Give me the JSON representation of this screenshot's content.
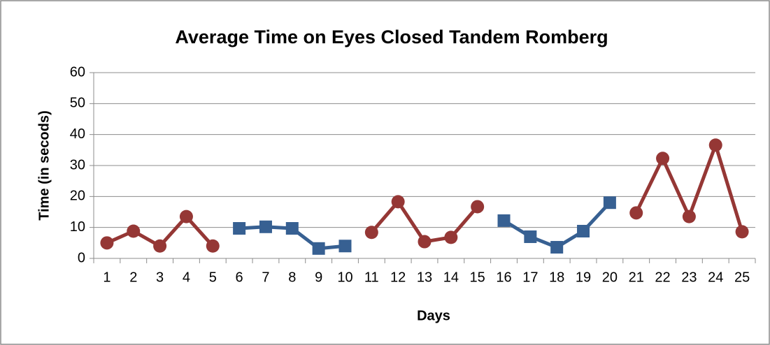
{
  "chart_data": {
    "type": "line",
    "title": "Average Time on Eyes Closed Tandem Romberg",
    "xlabel": "Days",
    "ylabel": "Time (in secods)",
    "categories": [
      "1",
      "2",
      "3",
      "4",
      "5",
      "6",
      "7",
      "8",
      "9",
      "10",
      "11",
      "12",
      "13",
      "14",
      "15",
      "16",
      "17",
      "18",
      "19",
      "20",
      "21",
      "22",
      "23",
      "24",
      "25"
    ],
    "series": [
      {
        "color": "#953735",
        "marker": "circle",
        "values": [
          5,
          8.8,
          4,
          13.5,
          4,
          null,
          null,
          null,
          null,
          null,
          8.4,
          18.3,
          5.4,
          6.8,
          16.7,
          null,
          null,
          null,
          null,
          null,
          14.7,
          32.3,
          13.5,
          36.6,
          8.6
        ]
      },
      {
        "color": "#376092",
        "marker": "square",
        "values": [
          null,
          null,
          null,
          null,
          null,
          9.7,
          10.2,
          9.7,
          3.2,
          4,
          null,
          null,
          null,
          null,
          null,
          12.2,
          7,
          3.6,
          8.8,
          18,
          null,
          null,
          null,
          null,
          null
        ]
      }
    ],
    "ylim": [
      0,
      60
    ],
    "yticks": [
      0,
      10,
      20,
      30,
      40,
      50,
      60
    ],
    "grid": true
  }
}
